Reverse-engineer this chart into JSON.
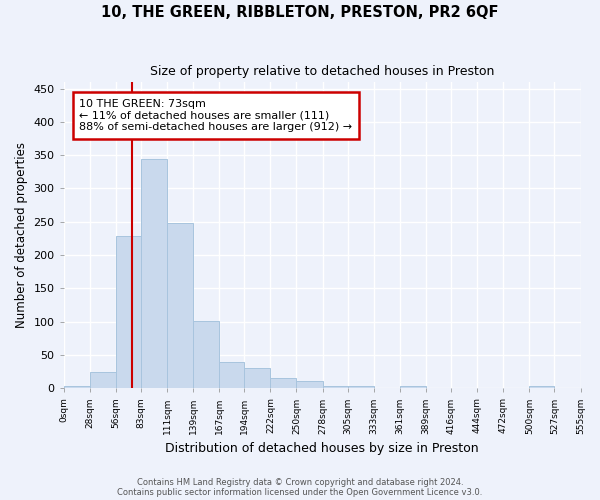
{
  "title": "10, THE GREEN, RIBBLETON, PRESTON, PR2 6QF",
  "subtitle": "Size of property relative to detached houses in Preston",
  "xlabel": "Distribution of detached houses by size in Preston",
  "ylabel": "Number of detached properties",
  "bar_color": "#c9d9ed",
  "bar_edge_color": "#a8c4de",
  "background_color": "#eef2fb",
  "grid_color": "#ffffff",
  "bin_edges": [
    0,
    28,
    56,
    83,
    111,
    139,
    167,
    194,
    222,
    250,
    278,
    305,
    333,
    361,
    389,
    416,
    444,
    472,
    500,
    527,
    555
  ],
  "bar_heights": [
    3,
    25,
    228,
    345,
    248,
    101,
    40,
    30,
    15,
    11,
    4,
    3,
    0,
    3,
    0,
    0,
    0,
    0,
    3,
    0
  ],
  "tick_labels": [
    "0sqm",
    "28sqm",
    "56sqm",
    "83sqm",
    "111sqm",
    "139sqm",
    "167sqm",
    "194sqm",
    "222sqm",
    "250sqm",
    "278sqm",
    "305sqm",
    "333sqm",
    "361sqm",
    "389sqm",
    "416sqm",
    "444sqm",
    "472sqm",
    "500sqm",
    "527sqm",
    "555sqm"
  ],
  "ylim": [
    0,
    460
  ],
  "yticks": [
    0,
    50,
    100,
    150,
    200,
    250,
    300,
    350,
    400,
    450
  ],
  "property_line_x": 73,
  "annotation_text": "10 THE GREEN: 73sqm\n← 11% of detached houses are smaller (111)\n88% of semi-detached houses are larger (912) →",
  "annotation_box_color": "#ffffff",
  "annotation_box_edge": "#cc0000",
  "property_line_color": "#cc0000",
  "footer_line1": "Contains HM Land Registry data © Crown copyright and database right 2024.",
  "footer_line2": "Contains public sector information licensed under the Open Government Licence v3.0."
}
